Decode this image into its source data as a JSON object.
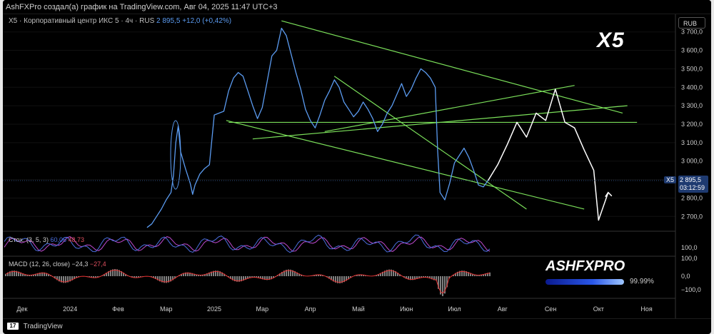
{
  "header": {
    "author_line": "AshFXPro создал(а) график на TradingView.com, Авг 04, 2025 11:47 UTC+3"
  },
  "legend": {
    "symbol_line": "X5 · Корпоративный центр ИКС 5 · 4ч · RUS",
    "last": "2 895,5",
    "change": "+12,0 (+0,42%)"
  },
  "ticker_big": "X5",
  "currency": "RUB",
  "price_tag": {
    "symbol": "X5",
    "price": "2 895,5",
    "countdown": "03:12:59"
  },
  "stoch": {
    "label": "Стох. (3, 5, 3)",
    "k": "60,06",
    "d": "48,73"
  },
  "macd": {
    "label": "MACD (12, 26, close)",
    "macd": "−24,3",
    "signal": "−27,4"
  },
  "brand": {
    "name": "ASHFXPRO",
    "progress": 0.9999,
    "progress_text": "99.99%"
  },
  "footer": {
    "platform": "TradingView",
    "logo_text": "17"
  },
  "colors": {
    "price_line": "#5b9bf0",
    "trendlines": "#7be05a",
    "projection": "#ffffff",
    "stoch_k": "#4b6fe0",
    "stoch_d": "#c04ad0",
    "macd_hist": "#808080",
    "macd_signal": "#e03030",
    "background": "#000000"
  },
  "chart_data": {
    "type": "line",
    "title": "Корпоративный центр ИКС 5 · 4ч",
    "ylabel": "RUB",
    "x_ticks": [
      "Дек",
      "2024",
      "Фев",
      "Мар",
      "2025",
      "Мар",
      "Апр",
      "Май",
      "Июн",
      "Июл",
      "Авг",
      "Сен",
      "Окт",
      "Ноя"
    ],
    "ylim": [
      2620,
      3780
    ],
    "y_ticks": [
      2700,
      2800,
      2900,
      3000,
      3100,
      3200,
      3300,
      3400,
      3500,
      3600,
      3700
    ],
    "y_tick_labels": [
      "2 700,0",
      "2 800,0",
      "2 900,0",
      "3 000,0",
      "3 100,0",
      "3 200,0",
      "3 300,0",
      "3 400,0",
      "3 500,0",
      "3 600,0",
      "3 700,0"
    ],
    "time_range": [
      0,
      14
    ],
    "series": [
      {
        "values": [
          [
            3.0,
            2640
          ],
          [
            3.1,
            2660
          ],
          [
            3.2,
            2700
          ],
          [
            3.3,
            2740
          ],
          [
            3.4,
            2790
          ],
          [
            3.5,
            2830
          ],
          [
            3.55,
            2920
          ],
          [
            3.6,
            3100
          ],
          [
            3.65,
            3190
          ],
          [
            3.7,
            3050
          ],
          [
            3.8,
            2960
          ],
          [
            3.9,
            2880
          ],
          [
            3.95,
            2820
          ],
          [
            4.0,
            2870
          ],
          [
            4.1,
            2930
          ],
          [
            4.2,
            2960
          ],
          [
            4.3,
            2980
          ],
          [
            4.4,
            3250
          ],
          [
            4.5,
            3260
          ],
          [
            4.6,
            3270
          ],
          [
            4.7,
            3380
          ],
          [
            4.8,
            3450
          ],
          [
            4.9,
            3480
          ],
          [
            5.0,
            3460
          ],
          [
            5.1,
            3380
          ],
          [
            5.2,
            3300
          ],
          [
            5.3,
            3230
          ],
          [
            5.4,
            3290
          ],
          [
            5.5,
            3430
          ],
          [
            5.6,
            3570
          ],
          [
            5.7,
            3600
          ],
          [
            5.8,
            3720
          ],
          [
            5.9,
            3680
          ],
          [
            6.0,
            3580
          ],
          [
            6.1,
            3480
          ],
          [
            6.2,
            3390
          ],
          [
            6.3,
            3280
          ],
          [
            6.4,
            3220
          ],
          [
            6.5,
            3180
          ],
          [
            6.6,
            3250
          ],
          [
            6.7,
            3330
          ],
          [
            6.8,
            3380
          ],
          [
            6.9,
            3440
          ],
          [
            7.0,
            3400
          ],
          [
            7.1,
            3320
          ],
          [
            7.2,
            3280
          ],
          [
            7.3,
            3240
          ],
          [
            7.4,
            3270
          ],
          [
            7.5,
            3320
          ],
          [
            7.6,
            3280
          ],
          [
            7.7,
            3230
          ],
          [
            7.8,
            3160
          ],
          [
            7.9,
            3200
          ],
          [
            8.0,
            3260
          ],
          [
            8.1,
            3300
          ],
          [
            8.2,
            3360
          ],
          [
            8.3,
            3420
          ],
          [
            8.4,
            3350
          ],
          [
            8.5,
            3390
          ],
          [
            8.6,
            3450
          ],
          [
            8.7,
            3500
          ],
          [
            8.8,
            3480
          ],
          [
            8.9,
            3450
          ],
          [
            9.0,
            3400
          ],
          [
            9.05,
            3060
          ],
          [
            9.1,
            2830
          ],
          [
            9.2,
            2790
          ],
          [
            9.3,
            2880
          ],
          [
            9.4,
            2990
          ],
          [
            9.5,
            3030
          ],
          [
            9.6,
            3070
          ],
          [
            9.7,
            3020
          ],
          [
            9.8,
            2950
          ],
          [
            9.9,
            2870
          ],
          [
            10.0,
            2860
          ],
          [
            10.1,
            2895
          ]
        ]
      },
      {
        "values": [
          [
            10.1,
            2895
          ],
          [
            10.3,
            2980
          ],
          [
            10.5,
            3090
          ],
          [
            10.7,
            3210
          ],
          [
            10.9,
            3130
          ],
          [
            11.1,
            3260
          ],
          [
            11.3,
            3220
          ],
          [
            11.5,
            3390
          ],
          [
            11.7,
            3210
          ],
          [
            11.9,
            3180
          ],
          [
            12.1,
            3060
          ],
          [
            12.3,
            2950
          ],
          [
            12.4,
            2680
          ],
          [
            12.6,
            2830
          ]
        ]
      }
    ],
    "trendlines": [
      [
        [
          5.8,
          3760
        ],
        [
          12.9,
          3260
        ]
      ],
      [
        [
          4.65,
          3220
        ],
        [
          12.1,
          2740
        ]
      ],
      [
        [
          4.7,
          3210
        ],
        [
          13.2,
          3210
        ]
      ],
      [
        [
          5.2,
          3120
        ],
        [
          13.0,
          3300
        ]
      ],
      [
        [
          6.7,
          3160
        ],
        [
          11.9,
          3410
        ]
      ],
      [
        [
          6.9,
          3460
        ],
        [
          10.9,
          2740
        ]
      ]
    ],
    "stochastic": {
      "name": "Стох. (3, 5, 3)",
      "k": 60.06,
      "d": 48.73
    },
    "macd": {
      "name": "MACD (12, 26, close)",
      "macd": -24.3,
      "signal": -27.4,
      "y_ticks": [
        "100,0",
        "0,0",
        "−100,0"
      ]
    }
  }
}
